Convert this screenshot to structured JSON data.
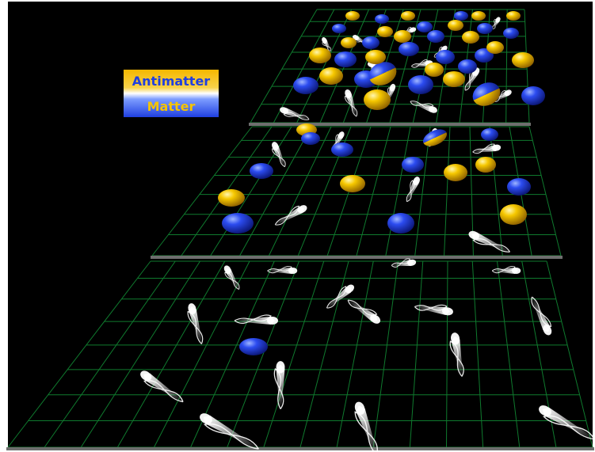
{
  "legend": {
    "antimatter_label": "Antimatter",
    "matter_label": "Matter"
  },
  "colors": {
    "matter": "#1f3fe0",
    "antimatter": "#f5c400",
    "grid": "#0f7a2e",
    "background": "#000000",
    "plane_edge": "#6e6e6e"
  },
  "icons": {
    "matter_particle": "blue-sphere-icon",
    "antimatter_particle": "yellow-sphere-icon",
    "photon": "light-streak-icon",
    "annihilation_pair": "half-blue-half-yellow-sphere-icon"
  }
}
